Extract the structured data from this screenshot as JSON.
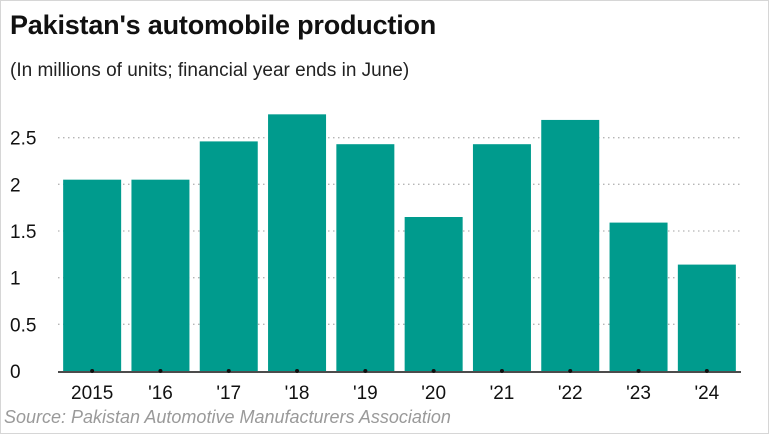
{
  "title": "Pakistan's automobile production",
  "subtitle": "(In millions of units; financial year ends in June)",
  "source": "Source: Pakistan Automotive Manufacturers Association",
  "colors": {
    "bar": "#009b8d",
    "grid": "#b5b5b5",
    "axis": "#111111"
  },
  "chart_data": {
    "type": "bar",
    "title": "Pakistan's automobile production",
    "subtitle": "(In millions of units; financial year ends in June)",
    "categories": [
      "2015",
      "'16",
      "'17",
      "'18",
      "'19",
      "'20",
      "'21",
      "'22",
      "'23",
      "'24"
    ],
    "values": [
      2.05,
      2.05,
      2.46,
      2.75,
      2.43,
      1.65,
      2.43,
      2.69,
      1.59,
      1.14
    ],
    "ylim": [
      0,
      2.85
    ],
    "yticks": [
      0,
      0.5,
      1,
      1.5,
      2,
      2.5
    ],
    "ytick_labels": [
      "0",
      "0.5",
      "1",
      "1.5",
      "2",
      "2.5"
    ],
    "xlabel": "",
    "ylabel": "",
    "grid": "horizontal dotted",
    "legend": "none"
  }
}
